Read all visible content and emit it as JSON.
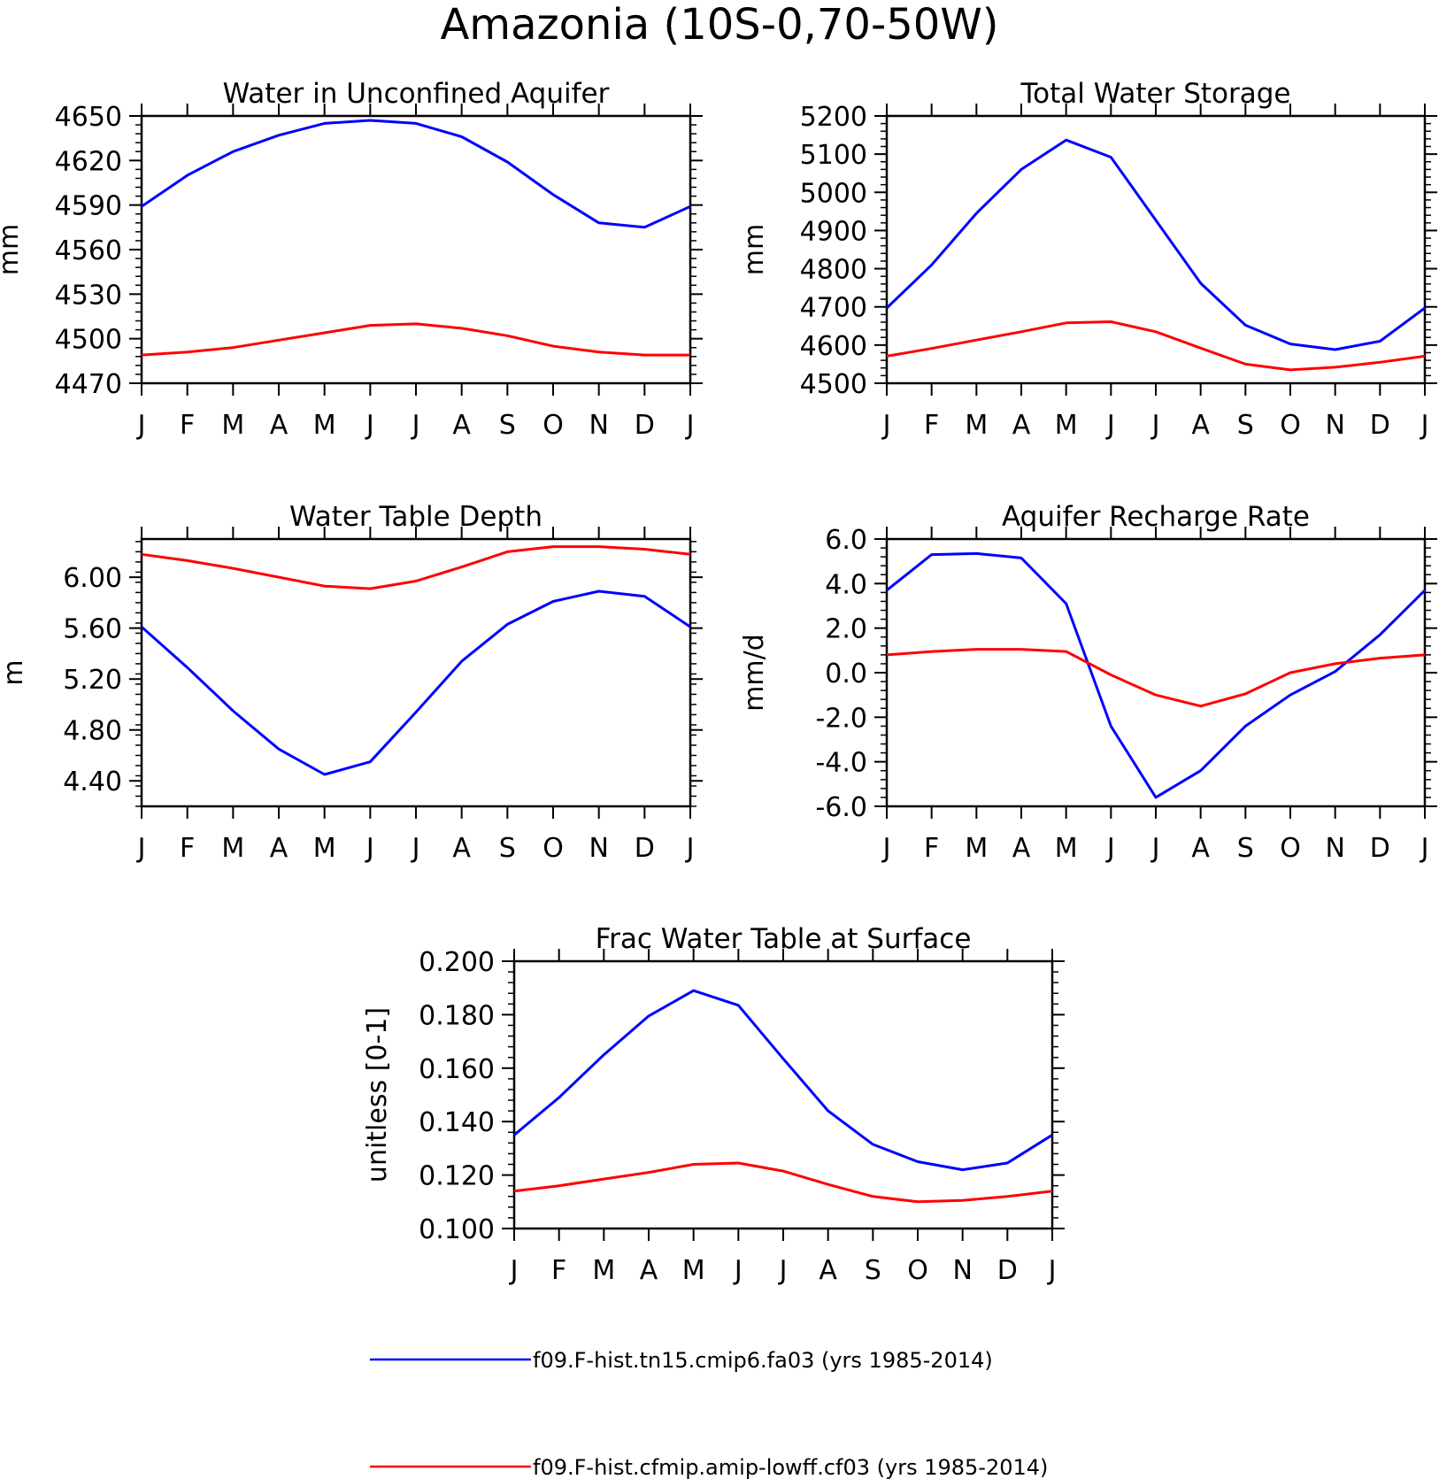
{
  "figure": {
    "title": "Amazonia (10S-0,70-50W)"
  },
  "months": [
    "J",
    "F",
    "M",
    "A",
    "M",
    "J",
    "J",
    "A",
    "S",
    "O",
    "N",
    "D",
    "J"
  ],
  "colors": {
    "blue": "#0000ff",
    "red": "#ff0000"
  },
  "legend": [
    {
      "name": "f09.F-hist.tn15.cmip6.fa03 (yrs 1985-2014)",
      "color": "#0000ff"
    },
    {
      "name": "f09.F-hist.cfmip.amip-lowff.cf03 (yrs 1985-2014)",
      "color": "#ff0000"
    }
  ],
  "chart_data": [
    {
      "type": "line",
      "title": "Water in Unconfined Aquifer",
      "ylabel": "mm",
      "xlabel": "",
      "ylim": [
        4470,
        4650
      ],
      "yticks": [
        4470,
        4500,
        4530,
        4560,
        4590,
        4620,
        4650
      ],
      "ytick_labels": [
        "4470",
        "4500",
        "4530",
        "4560",
        "4590",
        "4620",
        "4650"
      ],
      "categories": [
        "J",
        "F",
        "M",
        "A",
        "M",
        "J",
        "J",
        "A",
        "S",
        "O",
        "N",
        "D",
        "J"
      ],
      "grid": false,
      "series": [
        {
          "name": "f09.F-hist.tn15.cmip6.fa03 (yrs 1985-2014)",
          "color": "#0000ff",
          "values": [
            4589,
            4610,
            4626,
            4637,
            4645,
            4647,
            4645,
            4636,
            4619,
            4597,
            4578,
            4575,
            4589
          ]
        },
        {
          "name": "f09.F-hist.cfmip.amip-lowff.cf03 (yrs 1985-2014)",
          "color": "#ff0000",
          "values": [
            4489,
            4491,
            4494,
            4499,
            4504,
            4509,
            4510,
            4507,
            4502,
            4495,
            4491,
            4489,
            4489
          ]
        }
      ]
    },
    {
      "type": "line",
      "title": "Total Water Storage",
      "ylabel": "mm",
      "xlabel": "",
      "ylim": [
        4500,
        5200
      ],
      "yticks": [
        4500,
        4600,
        4700,
        4800,
        4900,
        5000,
        5100,
        5200
      ],
      "ytick_labels": [
        "4500",
        "4600",
        "4700",
        "4800",
        "4900",
        "5000",
        "5100",
        "5200"
      ],
      "categories": [
        "J",
        "F",
        "M",
        "A",
        "M",
        "J",
        "J",
        "A",
        "S",
        "O",
        "N",
        "D",
        "J"
      ],
      "grid": false,
      "series": [
        {
          "name": "f09.F-hist.tn15.cmip6.fa03 (yrs 1985-2014)",
          "color": "#0000ff",
          "values": [
            4697,
            4810,
            4945,
            5060,
            5137,
            5092,
            4927,
            4762,
            4652,
            4603,
            4588,
            4610,
            4697
          ]
        },
        {
          "name": "f09.F-hist.cfmip.amip-lowff.cf03 (yrs 1985-2014)",
          "color": "#ff0000",
          "values": [
            4571,
            4591,
            4613,
            4635,
            4658,
            4661,
            4635,
            4592,
            4550,
            4535,
            4542,
            4555,
            4571
          ]
        }
      ]
    },
    {
      "type": "line",
      "title": "Water Table Depth",
      "ylabel": "m",
      "xlabel": "",
      "ylim": [
        4.2,
        6.3
      ],
      "yticks": [
        4.4,
        4.8,
        5.2,
        5.6,
        6.0
      ],
      "ytick_labels": [
        "4.40",
        "4.80",
        "5.20",
        "5.60",
        "6.00"
      ],
      "categories": [
        "J",
        "F",
        "M",
        "A",
        "M",
        "J",
        "J",
        "A",
        "S",
        "O",
        "N",
        "D",
        "J"
      ],
      "grid": false,
      "series": [
        {
          "name": "f09.F-hist.tn15.cmip6.fa03 (yrs 1985-2014)",
          "color": "#0000ff",
          "values": [
            5.61,
            5.29,
            4.95,
            4.65,
            4.45,
            4.55,
            4.94,
            5.34,
            5.63,
            5.81,
            5.89,
            5.85,
            5.61
          ]
        },
        {
          "name": "f09.F-hist.cfmip.amip-lowff.cf03 (yrs 1985-2014)",
          "color": "#ff0000",
          "values": [
            6.18,
            6.13,
            6.07,
            6.0,
            5.93,
            5.91,
            5.97,
            6.08,
            6.2,
            6.24,
            6.24,
            6.22,
            6.18
          ]
        }
      ]
    },
    {
      "type": "line",
      "title": "Aquifer Recharge Rate",
      "ylabel": "mm/d",
      "xlabel": "",
      "ylim": [
        -6.0,
        6.0
      ],
      "yticks": [
        -6.0,
        -4.0,
        -2.0,
        0.0,
        2.0,
        4.0,
        6.0
      ],
      "ytick_labels": [
        "-6.0",
        "-4.0",
        "-2.0",
        "0.0",
        "2.0",
        "4.0",
        "6.0"
      ],
      "categories": [
        "J",
        "F",
        "M",
        "A",
        "M",
        "J",
        "J",
        "A",
        "S",
        "O",
        "N",
        "D",
        "J"
      ],
      "grid": false,
      "series": [
        {
          "name": "f09.F-hist.tn15.cmip6.fa03 (yrs 1985-2014)",
          "color": "#0000ff",
          "values": [
            3.7,
            5.3,
            5.35,
            5.15,
            3.1,
            -2.4,
            -5.6,
            -4.4,
            -2.4,
            -1.0,
            0.05,
            1.7,
            3.7
          ]
        },
        {
          "name": "f09.F-hist.cfmip.amip-lowff.cf03 (yrs 1985-2014)",
          "color": "#ff0000",
          "values": [
            0.8,
            0.95,
            1.05,
            1.05,
            0.95,
            -0.1,
            -1.0,
            -1.5,
            -0.95,
            0.0,
            0.4,
            0.65,
            0.8
          ]
        }
      ]
    },
    {
      "type": "line",
      "title": "Frac Water Table at Surface",
      "ylabel": "unitless [0-1]",
      "xlabel": "",
      "ylim": [
        0.1,
        0.2
      ],
      "yticks": [
        0.1,
        0.12,
        0.14,
        0.16,
        0.18,
        0.2
      ],
      "ytick_labels": [
        "0.100",
        "0.120",
        "0.140",
        "0.160",
        "0.180",
        "0.200"
      ],
      "categories": [
        "J",
        "F",
        "M",
        "A",
        "M",
        "J",
        "J",
        "A",
        "S",
        "O",
        "N",
        "D",
        "J"
      ],
      "grid": false,
      "series": [
        {
          "name": "f09.F-hist.tn15.cmip6.fa03 (yrs 1985-2014)",
          "color": "#0000ff",
          "values": [
            0.135,
            0.149,
            0.165,
            0.1795,
            0.189,
            0.1835,
            0.1635,
            0.144,
            0.1315,
            0.125,
            0.122,
            0.1245,
            0.135
          ]
        },
        {
          "name": "f09.F-hist.cfmip.amip-lowff.cf03 (yrs 1985-2014)",
          "color": "#ff0000",
          "values": [
            0.114,
            0.116,
            0.1185,
            0.121,
            0.124,
            0.1245,
            0.1215,
            0.1165,
            0.112,
            0.11,
            0.1105,
            0.112,
            0.114
          ]
        }
      ]
    }
  ]
}
